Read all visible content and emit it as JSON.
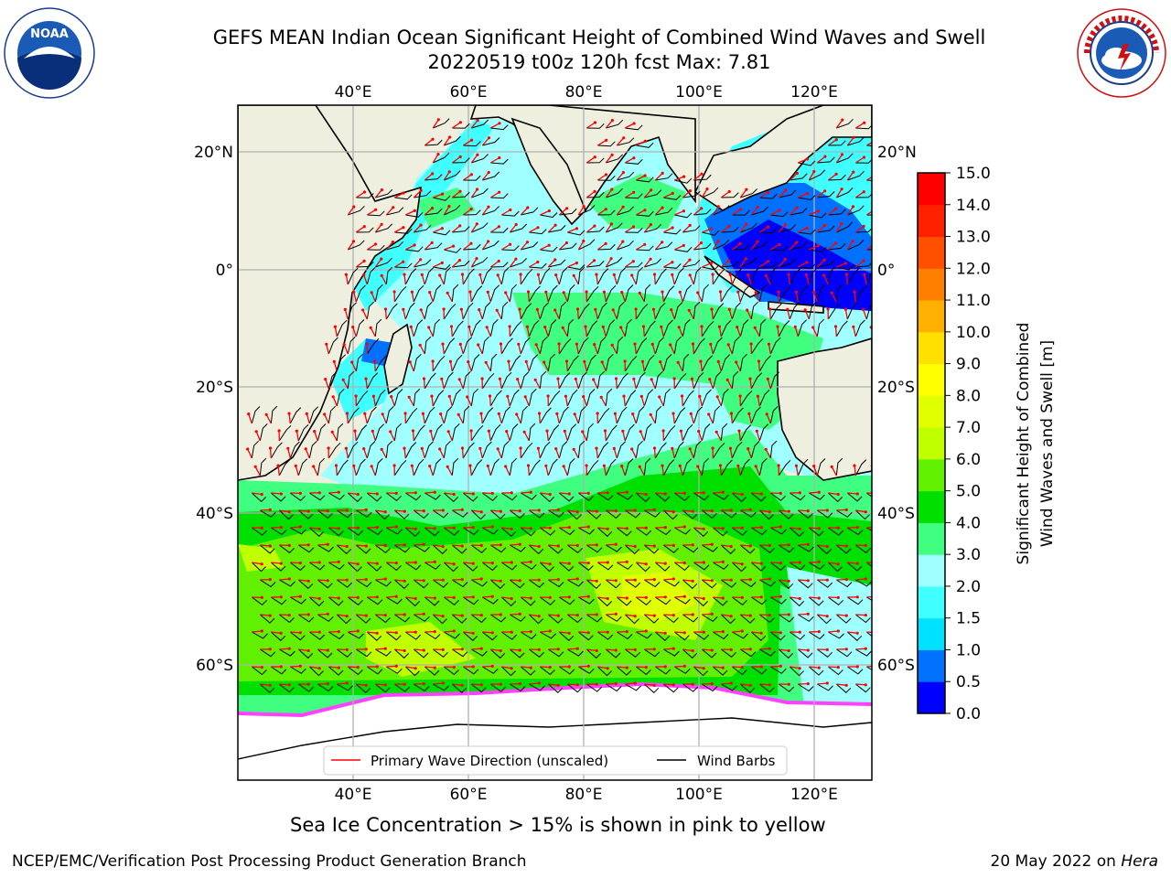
{
  "header": {
    "title_line1": "GEFS MEAN Indian Ocean Significant Height of Combined Wind Waves and Swell",
    "title_line2": "20220519 t00z 120h fcst   Max: 7.81"
  },
  "logos": {
    "left": {
      "icon": "noaa-logo-icon",
      "text": "NOAA",
      "ring_text": "NATIONAL OCEANIC AND ATMOSPHERIC ADMINISTRATION · U.S. DEPARTMENT OF COMMERCE"
    },
    "right": {
      "icon": "nws-logo-icon",
      "ring_text": "NATIONAL WEATHER SERVICE"
    }
  },
  "map": {
    "lon_labels": [
      "40°E",
      "60°E",
      "80°E",
      "100°E",
      "120°E"
    ],
    "lat_labels": [
      "20°N",
      "0°",
      "20°S",
      "40°S",
      "60°S"
    ],
    "colors": {
      "land": "#efefdf",
      "ice": "#ffffff",
      "wave_arrow": "#ff0000",
      "wind_barb": "#000000",
      "grid": "#b0b0b0"
    },
    "legend": {
      "wave_label": "Primary Wave Direction (unscaled)",
      "wind_label": "Wind Barbs"
    }
  },
  "colorbar": {
    "label_line1": "Significant Height of Combined",
    "label_line2": "Wind Waves and Swell [m]",
    "ticks": [
      "0.0",
      "0.5",
      "1.0",
      "1.5",
      "2.0",
      "3.0",
      "4.0",
      "5.0",
      "6.0",
      "7.0",
      "8.0",
      "9.0",
      "10.0",
      "11.0",
      "12.0",
      "13.0",
      "14.0",
      "15.0"
    ],
    "colors": [
      "#0000ff",
      "#0070ff",
      "#00e0ff",
      "#40ffff",
      "#a0ffff",
      "#40ff80",
      "#00e000",
      "#60f000",
      "#c0ff00",
      "#e0ff00",
      "#ffff00",
      "#ffe000",
      "#ffb000",
      "#ff8000",
      "#ff5000",
      "#ff2000",
      "#ff0000"
    ]
  },
  "note": "Sea Ice Concentration > 15% is shown in pink to yellow",
  "footer": {
    "left": "NCEP/EMC/Verification Post Processing Product Generation Branch",
    "right_date": "20 May 2022 on ",
    "right_host": "Hera"
  }
}
